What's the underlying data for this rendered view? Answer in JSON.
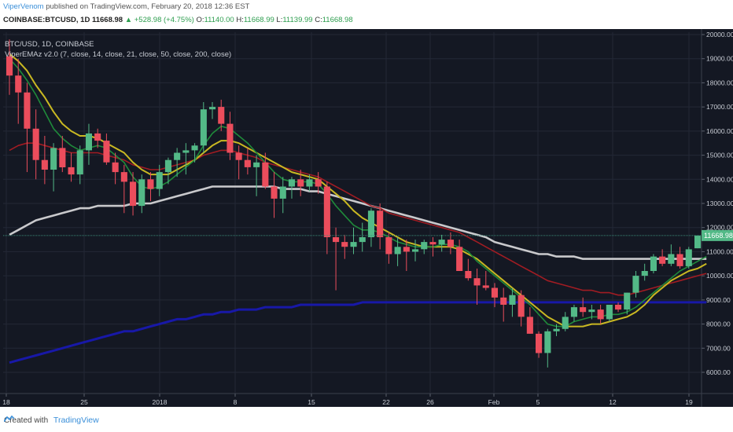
{
  "header": {
    "author": "ViperVenom",
    "published_text": "published on TradingView.com, February 20, 2018 12:36 EST",
    "symbol": "COINBASE:BTCUSD, 1D",
    "last": "11668.98",
    "change": "▲ +528.98 (+4.75%)",
    "o_label": "O:",
    "o_value": "11140.00",
    "h_label": "H:",
    "h_value": "11668.99",
    "l_label": "L:",
    "l_value": "11139.99",
    "c_label": "C:",
    "c_value": "11668.98"
  },
  "legend": {
    "symbol": "BTC/USD, 1D, COINBASE",
    "indicator": "ViperEMAz v2.0 (7, close, 14, close, 21, close, 50, close, 200, close)"
  },
  "footer": {
    "created_with": "Created with",
    "brand": "TradingView"
  },
  "colors": {
    "background": "#141823",
    "up": "#53b987",
    "down": "#eb4d5c",
    "ema7": "#1f8a3a",
    "ema14": "#c9b822",
    "ema21": "#a11c23",
    "ema50": "#c9c9cc",
    "ema200": "#1818a8",
    "price_line": "#3a8a78"
  },
  "chart_data": {
    "type": "candlestick",
    "title": "BTC/USD, 1D, COINBASE",
    "x_tick_labels": [
      "18",
      "25",
      "2018",
      "8",
      "15",
      "22",
      "26",
      "Feb",
      "5",
      "12",
      "19"
    ],
    "y_tick_labels": [
      "20000.00",
      "19000.00",
      "18000.00",
      "17000.00",
      "16000.00",
      "15000.00",
      "14000.00",
      "13000.00",
      "12000.00",
      "11000.00",
      "10000.00",
      "9000.00",
      "8000.00",
      "7000.00",
      "6000.00"
    ],
    "ylim": [
      5200,
      20200
    ],
    "current_price_label": "11668.98",
    "ohlc": [
      [
        19100,
        19800,
        17500,
        18300
      ],
      [
        18300,
        19000,
        16300,
        17600
      ],
      [
        17600,
        18000,
        14300,
        16100
      ],
      [
        16100,
        16900,
        14000,
        14800
      ],
      [
        14800,
        15800,
        13800,
        14400
      ],
      [
        14400,
        15500,
        13500,
        15300
      ],
      [
        15300,
        15800,
        14300,
        14500
      ],
      [
        14500,
        15100,
        13900,
        14200
      ],
      [
        14200,
        15400,
        13800,
        15200
      ],
      [
        15200,
        16300,
        14600,
        15900
      ],
      [
        15900,
        16100,
        15300,
        15600
      ],
      [
        15600,
        15900,
        14600,
        14700
      ],
      [
        14700,
        15100,
        13800,
        14300
      ],
      [
        14300,
        14600,
        12600,
        13900
      ],
      [
        13900,
        14300,
        12500,
        12900
      ],
      [
        12900,
        14200,
        12600,
        14000
      ],
      [
        14000,
        14300,
        13100,
        13600
      ],
      [
        13600,
        14600,
        13300,
        14300
      ],
      [
        14300,
        14900,
        13800,
        14800
      ],
      [
        14800,
        15300,
        14100,
        15100
      ],
      [
        15100,
        15500,
        14200,
        15200
      ],
      [
        15200,
        15500,
        14700,
        15400
      ],
      [
        15400,
        17200,
        15100,
        16900
      ],
      [
        16900,
        17200,
        16500,
        17000
      ],
      [
        17000,
        17300,
        16000,
        16300
      ],
      [
        16300,
        16800,
        14800,
        15100
      ],
      [
        15100,
        15400,
        14000,
        14800
      ],
      [
        14800,
        15300,
        14200,
        14500
      ],
      [
        14500,
        15000,
        13300,
        14700
      ],
      [
        14700,
        15100,
        13600,
        13700
      ],
      [
        13700,
        14300,
        12400,
        13200
      ],
      [
        13200,
        14100,
        12600,
        13700
      ],
      [
        13700,
        14100,
        13200,
        14000
      ],
      [
        14000,
        14400,
        13300,
        13700
      ],
      [
        13700,
        14200,
        13500,
        14000
      ],
      [
        14000,
        14300,
        13400,
        13700
      ],
      [
        13700,
        13900,
        10900,
        11600
      ],
      [
        11600,
        12000,
        9400,
        11400
      ],
      [
        11400,
        11700,
        10700,
        11200
      ],
      [
        11200,
        12000,
        10900,
        11400
      ],
      [
        11400,
        12200,
        11000,
        11600
      ],
      [
        11600,
        12800,
        11200,
        12700
      ],
      [
        12700,
        13000,
        11100,
        11600
      ],
      [
        11600,
        11800,
        10500,
        10900
      ],
      [
        10900,
        11600,
        10400,
        11200
      ],
      [
        11200,
        11500,
        10200,
        11000
      ],
      [
        11000,
        11500,
        10600,
        11100
      ],
      [
        11100,
        11500,
        10900,
        11400
      ],
      [
        11400,
        11600,
        10800,
        11300
      ],
      [
        11300,
        11700,
        11000,
        11500
      ],
      [
        11500,
        11800,
        10900,
        11200
      ],
      [
        11200,
        11500,
        10200,
        10200
      ],
      [
        10200,
        10700,
        9800,
        9900
      ],
      [
        9900,
        10300,
        8800,
        9600
      ],
      [
        9600,
        10200,
        9400,
        9500
      ],
      [
        9500,
        9700,
        8700,
        9100
      ],
      [
        9100,
        9500,
        8100,
        8800
      ],
      [
        8800,
        9500,
        8300,
        9200
      ],
      [
        9200,
        9400,
        7900,
        8300
      ],
      [
        8300,
        8700,
        7600,
        7600
      ],
      [
        7600,
        7700,
        6600,
        6800
      ],
      [
        6800,
        7800,
        6200,
        7700
      ],
      [
        7700,
        8000,
        7500,
        7800
      ],
      [
        7800,
        8500,
        7700,
        8300
      ],
      [
        8300,
        8800,
        8100,
        8700
      ],
      [
        8700,
        9100,
        8300,
        8500
      ],
      [
        8500,
        8800,
        8200,
        8600
      ],
      [
        8600,
        8800,
        8000,
        8200
      ],
      [
        8200,
        8800,
        8100,
        8800
      ],
      [
        8800,
        8900,
        8500,
        8600
      ],
      [
        8600,
        9300,
        8400,
        9300
      ],
      [
        9300,
        10200,
        9100,
        10000
      ],
      [
        10000,
        10500,
        9800,
        10200
      ],
      [
        10200,
        10900,
        10100,
        10800
      ],
      [
        10800,
        11100,
        10400,
        10500
      ],
      [
        10500,
        11300,
        10400,
        10900
      ],
      [
        10900,
        11200,
        10300,
        10400
      ],
      [
        10400,
        11200,
        10300,
        11100
      ],
      [
        11140,
        11669,
        11140,
        11669
      ]
    ],
    "series": [
      {
        "name": "EMA 7",
        "color": "#1f8a3a",
        "values": [
          19000,
          18600,
          18100,
          17500,
          16800,
          16100,
          15700,
          15400,
          15200,
          15300,
          15400,
          15300,
          15000,
          14700,
          14100,
          13700,
          13600,
          13700,
          13900,
          14200,
          14500,
          14800,
          15400,
          15900,
          16200,
          16100,
          15800,
          15500,
          15100,
          14700,
          14300,
          14000,
          13900,
          13900,
          13900,
          13800,
          13400,
          12900,
          12500,
          12100,
          11900,
          11900,
          11800,
          11600,
          11400,
          11300,
          11200,
          11200,
          11200,
          11300,
          11300,
          11200,
          11000,
          10600,
          10300,
          10000,
          9700,
          9400,
          9100,
          8800,
          8400,
          8000,
          7900,
          7900,
          8100,
          8200,
          8300,
          8300,
          8400,
          8400,
          8500,
          8700,
          9000,
          9300,
          9600,
          9900,
          10200,
          10400,
          10600,
          10800
        ]
      },
      {
        "name": "EMA 14",
        "color": "#c9b822",
        "values": [
          19200,
          18900,
          18500,
          17900,
          17400,
          16800,
          16300,
          16000,
          15800,
          15800,
          15700,
          15500,
          15300,
          15100,
          14700,
          14400,
          14200,
          14200,
          14200,
          14400,
          14600,
          14800,
          15100,
          15400,
          15600,
          15600,
          15500,
          15300,
          15100,
          14900,
          14700,
          14500,
          14300,
          14200,
          14100,
          14000,
          13700,
          13400,
          13100,
          12700,
          12400,
          12200,
          12000,
          11800,
          11600,
          11400,
          11300,
          11200,
          11200,
          11200,
          11200,
          11100,
          10900,
          10700,
          10400,
          10100,
          9800,
          9500,
          9200,
          8900,
          8600,
          8300,
          8100,
          7900,
          7900,
          7900,
          8000,
          8000,
          8100,
          8200,
          8300,
          8500,
          8800,
          9200,
          9500,
          9800,
          10000,
          10200,
          10300,
          10500
        ]
      },
      {
        "name": "EMA 21",
        "color": "#a11c23",
        "values": [
          15200,
          15400,
          15500,
          15500,
          15400,
          15300,
          15200,
          15100,
          15100,
          15100,
          15100,
          15000,
          14900,
          14800,
          14600,
          14500,
          14400,
          14400,
          14500,
          14600,
          14700,
          14800,
          15000,
          15100,
          15200,
          15200,
          15100,
          15000,
          14900,
          14700,
          14600,
          14500,
          14400,
          14300,
          14200,
          14100,
          13900,
          13700,
          13500,
          13300,
          13100,
          12900,
          12800,
          12600,
          12500,
          12400,
          12300,
          12200,
          12100,
          12000,
          11900,
          11800,
          11600,
          11400,
          11200,
          11000,
          10800,
          10600,
          10400,
          10200,
          10000,
          9800,
          9700,
          9600,
          9500,
          9400,
          9400,
          9300,
          9300,
          9200,
          9200,
          9300,
          9400,
          9500,
          9600,
          9700,
          9800,
          9900,
          10000,
          10100
        ]
      },
      {
        "name": "EMA 50",
        "color": "#c9c9cc",
        "values": [
          11700,
          11900,
          12100,
          12300,
          12400,
          12500,
          12600,
          12700,
          12800,
          12800,
          12900,
          12900,
          12900,
          12900,
          13000,
          13000,
          13000,
          13100,
          13200,
          13300,
          13400,
          13500,
          13600,
          13700,
          13700,
          13700,
          13700,
          13700,
          13700,
          13700,
          13700,
          13600,
          13600,
          13600,
          13500,
          13500,
          13400,
          13300,
          13200,
          13100,
          13000,
          12900,
          12800,
          12700,
          12600,
          12500,
          12400,
          12300,
          12200,
          12100,
          12000,
          11900,
          11800,
          11700,
          11600,
          11400,
          11300,
          11200,
          11100,
          11000,
          10900,
          10900,
          10800,
          10800,
          10800,
          10700,
          10700,
          10700,
          10700,
          10700,
          10700,
          10700,
          10700,
          10700,
          10700,
          10700,
          10700,
          10700,
          10700,
          10700
        ]
      },
      {
        "name": "EMA 200",
        "color": "#1818a8",
        "values": [
          6400,
          6500,
          6600,
          6700,
          6800,
          6900,
          7000,
          7100,
          7200,
          7300,
          7400,
          7500,
          7600,
          7700,
          7700,
          7800,
          7900,
          8000,
          8100,
          8200,
          8200,
          8300,
          8400,
          8400,
          8500,
          8500,
          8600,
          8600,
          8600,
          8700,
          8700,
          8700,
          8700,
          8800,
          8800,
          8800,
          8800,
          8800,
          8800,
          8800,
          8900,
          8900,
          8900,
          8900,
          8900,
          8900,
          8900,
          8900,
          8900,
          8900,
          8900,
          8900,
          8900,
          8900,
          8900,
          8900,
          8900,
          8900,
          8900,
          8900,
          8900,
          8900,
          8900,
          8900,
          8900,
          8900,
          8900,
          8900,
          8900,
          8900,
          8900,
          8900,
          8900,
          8900,
          8900,
          8900,
          8900,
          8900,
          8900,
          8900
        ]
      }
    ],
    "grid": true
  }
}
